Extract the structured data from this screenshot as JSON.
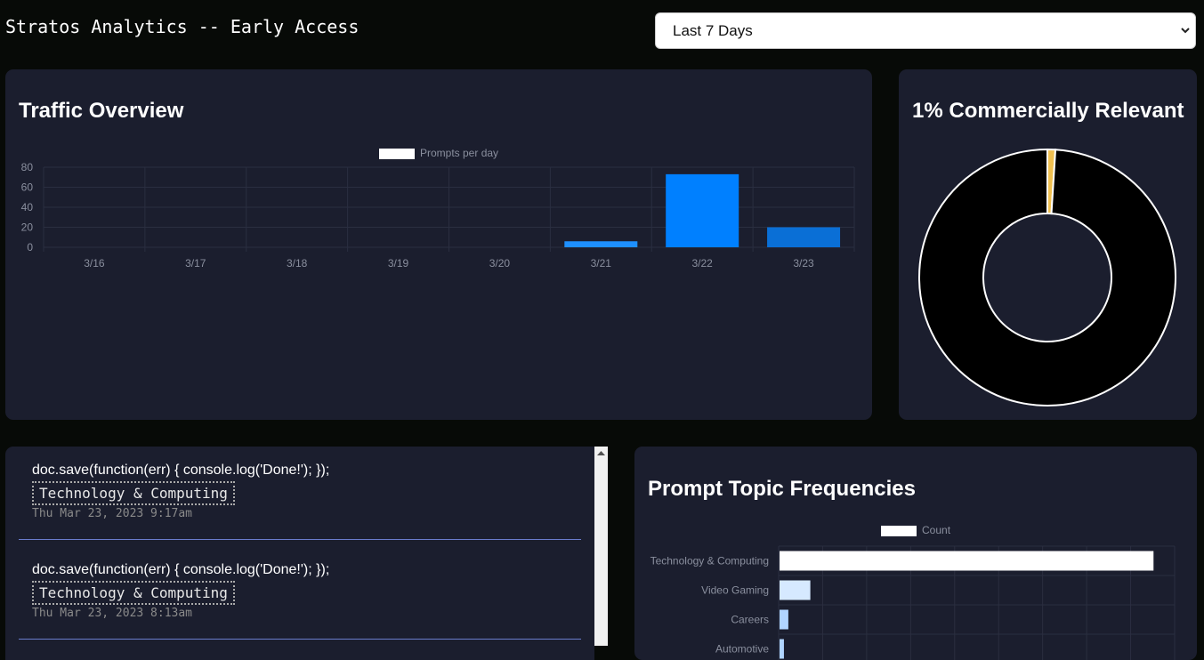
{
  "header": {
    "title": "Stratos Analytics -- Early Access",
    "range_select": {
      "value": "Last 7 Days"
    }
  },
  "traffic": {
    "title": "Traffic Overview",
    "chart_data": {
      "type": "bar",
      "legend": {
        "label": "Prompts per day",
        "placement": "top-center"
      },
      "categories": [
        "3/16",
        "3/17",
        "3/18",
        "3/19",
        "3/20",
        "3/21",
        "3/22",
        "3/23"
      ],
      "series": [
        {
          "name": "Prompts per day",
          "values": [
            0,
            0,
            0,
            0,
            0,
            6,
            73,
            20
          ]
        }
      ],
      "ylim": [
        0,
        80
      ],
      "yticks": [
        0,
        20,
        40,
        60,
        80
      ],
      "grid": true,
      "colors": [
        "#1e90ff",
        "#1e90ff",
        "#1e90ff",
        "#1e90ff",
        "#1e90ff",
        "#1e90ff",
        "#0080ff",
        "#0a6fd6"
      ]
    }
  },
  "commercial": {
    "title": "1% Commercially Relevant",
    "chart_data": {
      "type": "pie",
      "style": "doughnut",
      "values": [
        1,
        99
      ],
      "colors": [
        "#f0c050",
        "#000000"
      ]
    }
  },
  "feed": {
    "items": [
      {
        "prompt": "doc.save(function(err) { console.log('Done!'); });",
        "tag": "Technology & Computing",
        "time": "Thu Mar 23, 2023 9:17am"
      },
      {
        "prompt": "doc.save(function(err) { console.log('Done!'); });",
        "tag": "Technology & Computing",
        "time": "Thu Mar 23, 2023 8:13am"
      }
    ]
  },
  "topics": {
    "title": "Prompt Topic Frequencies",
    "chart_data": {
      "type": "bar",
      "orientation": "horizontal",
      "legend": {
        "label": "Count",
        "placement": "top-center"
      },
      "categories": [
        "Technology & Computing",
        "Video Gaming",
        "Careers",
        "Automotive"
      ],
      "series": [
        {
          "name": "Count",
          "values": [
            85,
            7,
            2,
            1
          ]
        }
      ],
      "xlim": [
        0,
        90
      ],
      "grid": true,
      "colors": [
        "#ffffff",
        "#d6e9ff",
        "#b0d4ff",
        "#b0d4ff"
      ]
    }
  }
}
